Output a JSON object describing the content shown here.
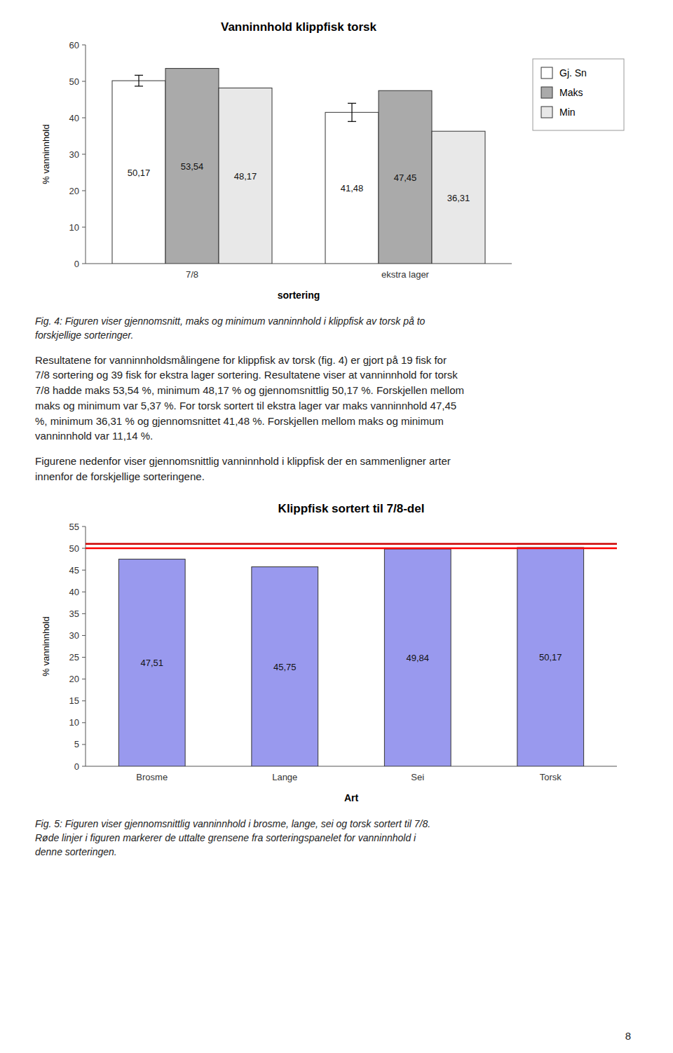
{
  "chart_data": [
    {
      "type": "bar",
      "title": "Vanninnhold klippfisk torsk",
      "xlabel": "sortering",
      "ylabel": "% vanninnhold",
      "categories": [
        "7/8",
        "ekstra lager"
      ],
      "series": [
        {
          "name": "Gj. Sn",
          "color": "#ffffff",
          "values": [
            50.17,
            41.48
          ],
          "value_labels": [
            "50,17",
            "41,48"
          ],
          "errors": [
            1.5,
            2.5
          ]
        },
        {
          "name": "Maks",
          "color": "#aaaaaa",
          "values": [
            53.54,
            47.45
          ],
          "value_labels": [
            "53,54",
            "47,45"
          ]
        },
        {
          "name": "Min",
          "color": "#e8e8e8",
          "values": [
            48.17,
            36.31
          ],
          "value_labels": [
            "48,17",
            "36,31"
          ]
        }
      ],
      "ylim": [
        0,
        60
      ],
      "yticks": [
        0,
        10,
        20,
        30,
        40,
        50,
        60
      ],
      "grid": false,
      "legend": "right",
      "data_labels": true
    },
    {
      "type": "bar",
      "title": "Klippfisk sortert til 7/8-del",
      "xlabel": "Art",
      "ylabel": "% vanninnhold",
      "categories": [
        "Brosme",
        "Lange",
        "Sei",
        "Torsk"
      ],
      "values": [
        47.51,
        45.75,
        49.84,
        50.17
      ],
      "value_labels": [
        "47,51",
        "45,75",
        "49,84",
        "50,17"
      ],
      "color": "#9999ee",
      "reference_lines": [
        {
          "value": 51,
          "color": "#cc0000"
        },
        {
          "value": 50,
          "color": "#ff0000"
        }
      ],
      "ylim": [
        0,
        55
      ],
      "yticks": [
        0,
        5,
        10,
        15,
        20,
        25,
        30,
        35,
        40,
        45,
        50,
        55
      ],
      "grid": false,
      "data_labels": true
    }
  ],
  "texts": [
    "Fig. 4: Figuren viser gjennomsnitt, maks og minimum vanninnhold i klippfisk av torsk på to\nforskjellige sorteringer.",
    "Resultatene for vanninnholdsmålingene for klippfisk av torsk (fig. 4) er gjort på 19 fisk for\n7/8 sortering og 39 fisk for ekstra lager sortering. Resultatene viser at vanninnhold for torsk\n7/8 hadde maks 53,54 %, minimum 48,17 % og gjennomsnittlig 50,17 %. Forskjellen mellom\nmaks og minimum var 5,37 %. For torsk sortert til ekstra lager var maks vanninnhold 47,45\n%, minimum 36,31 % og gjennomsnittet 41,48 %. Forskjellen mellom maks og minimum\nvanninnhold var 11,14 %.",
    "Figurene nedenfor viser gjennomsnittlig vanninnhold i klippfisk der en sammenligner arter\ninnenfor de forskjellige sorteringene.",
    "Fig. 5: Figuren viser gjennomsnittlig vanninnhold i brosme, lange, sei og torsk sortert til 7/8.\nRøde linjer i figuren markerer de uttalte grensene fra sorteringspanelet for vanninnhold i\ndenne sorteringen."
  ],
  "page_number": "8"
}
